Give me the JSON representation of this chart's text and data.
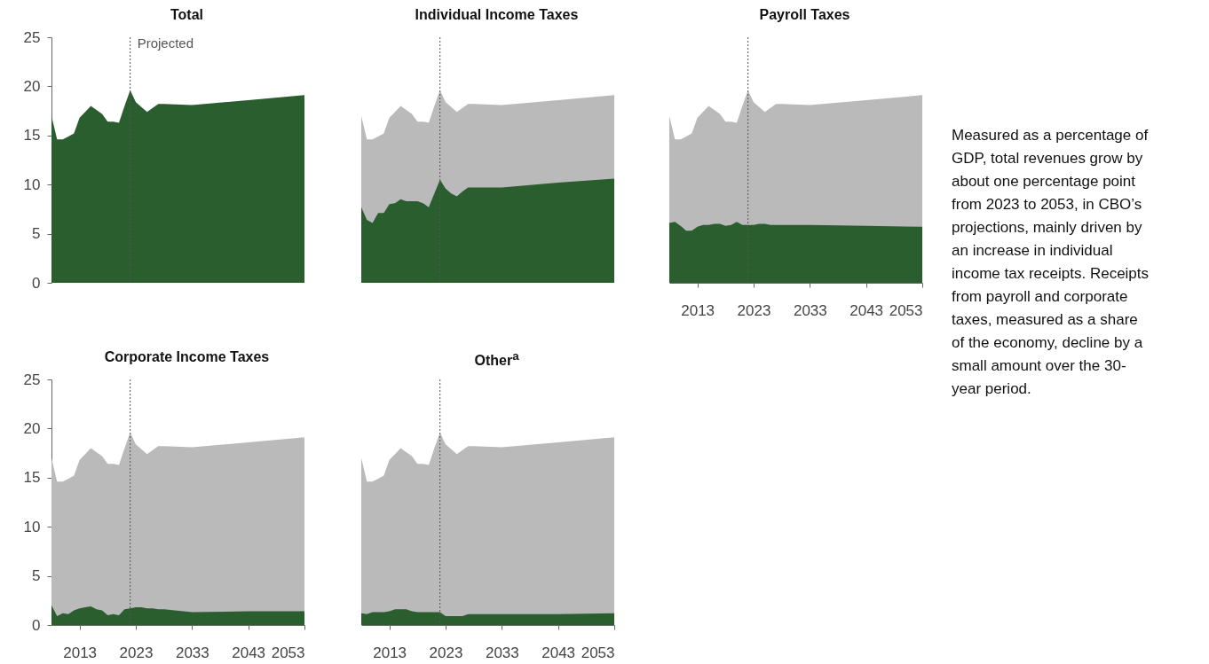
{
  "chart_data": [
    {
      "type": "area",
      "title": "Total",
      "x": [
        2008,
        2009,
        2010,
        2011,
        2012,
        2013,
        2014,
        2015,
        2016,
        2017,
        2018,
        2019,
        2020,
        2021,
        2022,
        2023,
        2024,
        2025,
        2026,
        2027,
        2028,
        2033,
        2043,
        2053
      ],
      "xlim": [
        2008,
        2053
      ],
      "xticks": [
        2013,
        2023,
        2033,
        2043,
        2053
      ],
      "ylim": [
        0,
        25
      ],
      "yticks": [
        0,
        5,
        10,
        15,
        20,
        25
      ],
      "tick_labels": "y",
      "line_style": "dotted",
      "series": [
        {
          "color": "#2a5e2e",
          "values": [
            17.0,
            14.6,
            14.6,
            14.9,
            15.2,
            16.8,
            17.4,
            18.0,
            17.6,
            17.2,
            16.4,
            16.4,
            16.3,
            18.0,
            19.6,
            18.4,
            17.9,
            17.4,
            17.8,
            18.2,
            18.2,
            18.1,
            18.6,
            19.1
          ]
        }
      ],
      "ref_lines": [
        {
          "axis": "x",
          "value": 2022,
          "label": "Projected",
          "color": "#555555"
        }
      ]
    },
    {
      "type": "area",
      "title": "Individual Income Taxes",
      "x": [
        2008,
        2009,
        2010,
        2011,
        2012,
        2013,
        2014,
        2015,
        2016,
        2017,
        2018,
        2019,
        2020,
        2021,
        2022,
        2023,
        2024,
        2025,
        2026,
        2027,
        2028,
        2033,
        2043,
        2053
      ],
      "xlim": [
        2008,
        2053
      ],
      "xticks": [
        2013,
        2023,
        2033,
        2043,
        2053
      ],
      "ylim": [
        0,
        25
      ],
      "yticks": [
        0,
        5,
        10,
        15,
        20,
        25
      ],
      "tick_labels": false,
      "line_style": "dotted",
      "series": [
        {
          "color": "#bababa",
          "values": [
            17.0,
            14.6,
            14.6,
            14.9,
            15.2,
            16.8,
            17.4,
            18.0,
            17.6,
            17.2,
            16.4,
            16.4,
            16.3,
            18.0,
            19.6,
            18.4,
            17.9,
            17.4,
            17.8,
            18.2,
            18.2,
            18.1,
            18.6,
            19.1
          ]
        },
        {
          "color": "#2a5e2e",
          "values": [
            7.7,
            6.4,
            6.1,
            7.1,
            7.1,
            8.0,
            8.1,
            8.5,
            8.3,
            8.3,
            8.3,
            8.1,
            7.7,
            9.1,
            10.5,
            9.6,
            9.1,
            8.8,
            9.3,
            9.7,
            9.7,
            9.7,
            10.2,
            10.6
          ]
        }
      ],
      "ref_lines": [
        {
          "axis": "x",
          "value": 2022,
          "label": null,
          "color": "#555555"
        }
      ]
    },
    {
      "type": "area",
      "title": "Payroll Taxes",
      "x": [
        2008,
        2009,
        2010,
        2011,
        2012,
        2013,
        2014,
        2015,
        2016,
        2017,
        2018,
        2019,
        2020,
        2021,
        2022,
        2023,
        2024,
        2025,
        2026,
        2027,
        2028,
        2033,
        2043,
        2053
      ],
      "xlim": [
        2008,
        2053
      ],
      "xticks": [
        2013,
        2023,
        2033,
        2043,
        2053
      ],
      "ylim": [
        0,
        25
      ],
      "yticks": [
        0,
        5,
        10,
        15,
        20,
        25
      ],
      "tick_labels": "x",
      "line_style": "dotted",
      "series": [
        {
          "color": "#bababa",
          "values": [
            17.0,
            14.6,
            14.6,
            14.9,
            15.2,
            16.8,
            17.4,
            18.0,
            17.6,
            17.2,
            16.4,
            16.4,
            16.3,
            18.0,
            19.6,
            18.4,
            17.9,
            17.4,
            17.8,
            18.2,
            18.2,
            18.1,
            18.6,
            19.1
          ]
        },
        {
          "color": "#2a5e2e",
          "values": [
            6.1,
            6.2,
            5.8,
            5.3,
            5.3,
            5.7,
            5.9,
            5.9,
            6.0,
            6.0,
            5.8,
            5.9,
            6.2,
            5.9,
            5.9,
            5.9,
            6.0,
            6.0,
            5.9,
            5.9,
            5.9,
            5.9,
            5.8,
            5.7
          ]
        }
      ],
      "ref_lines": [
        {
          "axis": "x",
          "value": 2022,
          "label": null,
          "color": "#555555"
        }
      ]
    },
    {
      "type": "area",
      "title": "Corporate Income Taxes",
      "x": [
        2008,
        2009,
        2010,
        2011,
        2012,
        2013,
        2014,
        2015,
        2016,
        2017,
        2018,
        2019,
        2020,
        2021,
        2022,
        2023,
        2024,
        2025,
        2026,
        2027,
        2028,
        2033,
        2043,
        2053
      ],
      "xlim": [
        2008,
        2053
      ],
      "xticks": [
        2013,
        2023,
        2033,
        2043,
        2053
      ],
      "ylim": [
        0,
        25
      ],
      "yticks": [
        0,
        5,
        10,
        15,
        20,
        25
      ],
      "line_style": "dotted",
      "series": [
        {
          "color": "#bababa",
          "values": [
            17.0,
            14.6,
            14.6,
            14.9,
            15.2,
            16.8,
            17.4,
            18.0,
            17.6,
            17.2,
            16.4,
            16.4,
            16.3,
            18.0,
            19.6,
            18.4,
            17.9,
            17.4,
            17.8,
            18.2,
            18.2,
            18.1,
            18.6,
            19.1
          ]
        },
        {
          "color": "#2a5e2e",
          "values": [
            2.0,
            0.9,
            1.2,
            1.1,
            1.5,
            1.7,
            1.8,
            1.9,
            1.6,
            1.5,
            1.0,
            1.1,
            1.0,
            1.6,
            1.7,
            1.8,
            1.8,
            1.7,
            1.7,
            1.6,
            1.6,
            1.3,
            1.4,
            1.4
          ]
        }
      ],
      "ref_lines": [
        {
          "axis": "x",
          "value": 2022,
          "label": null,
          "color": "#555555"
        }
      ]
    },
    {
      "type": "area",
      "title": "Other$^{a}$",
      "x": [
        2008,
        2009,
        2010,
        2011,
        2012,
        2013,
        2014,
        2015,
        2016,
        2017,
        2018,
        2019,
        2020,
        2021,
        2022,
        2023,
        2024,
        2025,
        2026,
        2027,
        2028,
        2033,
        2043,
        2053
      ],
      "xlim": [
        2008,
        2053
      ],
      "xticks": [
        2013,
        2023,
        2033,
        2043,
        2053
      ],
      "ylim": [
        0,
        25
      ],
      "yticks": [
        0,
        5,
        10,
        15,
        20,
        25
      ],
      "tick_labels": "x",
      "line_style": "dotted",
      "series": [
        {
          "color": "#bababa",
          "values": [
            17.0,
            14.6,
            14.6,
            14.9,
            15.2,
            16.8,
            17.4,
            18.0,
            17.6,
            17.2,
            16.4,
            16.4,
            16.3,
            18.0,
            19.6,
            18.4,
            17.9,
            17.4,
            17.8,
            18.2,
            18.2,
            18.1,
            18.6,
            19.1
          ]
        },
        {
          "color": "#2a5e2e",
          "values": [
            1.2,
            1.1,
            1.3,
            1.3,
            1.3,
            1.4,
            1.6,
            1.6,
            1.6,
            1.4,
            1.3,
            1.3,
            1.3,
            1.3,
            1.3,
            0.9,
            0.9,
            0.9,
            0.9,
            1.1,
            1.1,
            1.1,
            1.1,
            1.2
          ]
        }
      ],
      "ref_lines": [
        {
          "axis": "x",
          "value": 2022,
          "label": null,
          "color": "#555555"
        }
      ]
    },
    {
      "type": "other",
      "annotations": [
        "Measured as a percentage of GDP, total revenues grow by about one percentage point from 2023 to 2053, in CBO’s projections, mainly driven by an increase in individual income tax receipts. Receipts from payroll and corporate taxes, measured as a share of the economy, decline by a small amount over the 30-year period."
      ]
    }
  ]
}
